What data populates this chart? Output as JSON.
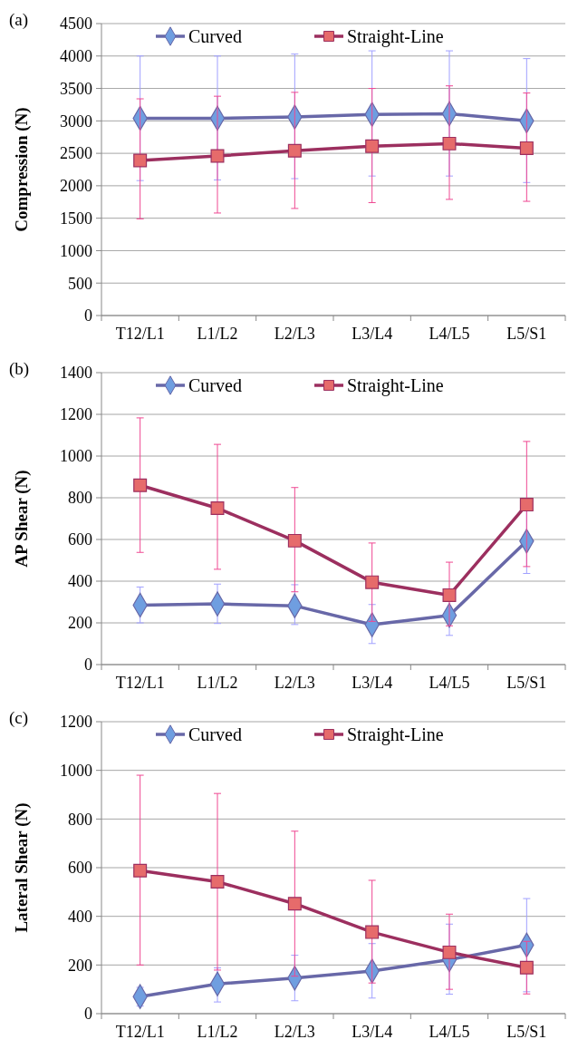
{
  "chart_data": [
    {
      "type": "line",
      "ylabel": "Compression (N)",
      "annotations": [
        "(a)"
      ],
      "categories": [
        "T12/L1",
        "L1/L2",
        "L2/L3",
        "L3/L4",
        "L4/L5",
        "L5/S1"
      ],
      "ylim": [
        0,
        4500
      ],
      "yticks": [
        0,
        500,
        1000,
        1500,
        2000,
        2500,
        3000,
        3500,
        4000,
        4500
      ],
      "grid": "y",
      "legend": "top",
      "line_style": "solid",
      "series": [
        {
          "name": "Curved",
          "color": "#6868a8",
          "marker": "diamond",
          "values": [
            3040,
            3040,
            3060,
            3100,
            3110,
            3000
          ],
          "errors": [
            [
              2080,
              4000
            ],
            [
              2090,
              4000
            ],
            [
              2110,
              4030
            ],
            [
              2150,
              4080
            ],
            [
              2150,
              4080
            ],
            [
              2050,
              3960
            ]
          ]
        },
        {
          "name": "Straight-Line",
          "color": "#9c2f5f",
          "marker": "square",
          "values": [
            2390,
            2460,
            2540,
            2610,
            2650,
            2580
          ],
          "errors": [
            [
              1490,
              3340
            ],
            [
              1580,
              3380
            ],
            [
              1650,
              3440
            ],
            [
              1740,
              3500
            ],
            [
              1790,
              3540
            ],
            [
              1760,
              3430
            ]
          ]
        }
      ]
    },
    {
      "type": "line",
      "ylabel": "AP Shear (N)",
      "annotations": [
        "(b)"
      ],
      "categories": [
        "T12/L1",
        "L1/L2",
        "L2/L3",
        "L3/L4",
        "L4/L5",
        "L5/S1"
      ],
      "ylim": [
        0,
        1400
      ],
      "yticks": [
        0,
        200,
        400,
        600,
        800,
        1000,
        1200,
        1400
      ],
      "grid": "y",
      "legend": "top",
      "line_style": "solid",
      "series": [
        {
          "name": "Curved",
          "color": "#6868a8",
          "marker": "diamond",
          "values": [
            285,
            291,
            282,
            191,
            236,
            592
          ],
          "errors": [
            [
              200,
              372
            ],
            [
              197,
              386
            ],
            [
              192,
              383
            ],
            [
              101,
              288
            ],
            [
              140,
              236
            ],
            [
              437,
              747
            ]
          ]
        },
        {
          "name": "Straight-Line",
          "color": "#9c2f5f",
          "marker": "square",
          "values": [
            860,
            750,
            594,
            395,
            333,
            767
          ],
          "errors": [
            [
              538,
              1183
            ],
            [
              457,
              1056
            ],
            [
              349,
              849
            ],
            [
              207,
              583
            ],
            [
              186,
              491
            ],
            [
              470,
              1070
            ]
          ]
        }
      ]
    },
    {
      "type": "line",
      "ylabel": "Lateral Shear (N)",
      "annotations": [
        "(c)"
      ],
      "categories": [
        "T12/L1",
        "L1/L2",
        "L2/L3",
        "L3/L4",
        "L4/L5",
        "L5/S1"
      ],
      "ylim": [
        0,
        1200
      ],
      "yticks": [
        0,
        200,
        400,
        600,
        800,
        1000,
        1200
      ],
      "grid": "y",
      "legend": "top",
      "line_style": "solid",
      "series": [
        {
          "name": "Curved",
          "color": "#6868a8",
          "marker": "diamond",
          "values": [
            70,
            122,
            146,
            175,
            222,
            282
          ],
          "errors": [
            [
              31,
              108
            ],
            [
              48,
              188
            ],
            [
              53,
              240
            ],
            [
              64,
              288
            ],
            [
              80,
              368
            ],
            [
              90,
              473
            ]
          ]
        },
        {
          "name": "Straight-Line",
          "color": "#9c2f5f",
          "marker": "square",
          "values": [
            588,
            542,
            452,
            335,
            252,
            189
          ],
          "errors": [
            [
              200,
              980
            ],
            [
              179,
              905
            ],
            [
              154,
              750
            ],
            [
              126,
              548
            ],
            [
              100,
              409
            ],
            [
              81,
              297
            ]
          ]
        }
      ]
    }
  ]
}
